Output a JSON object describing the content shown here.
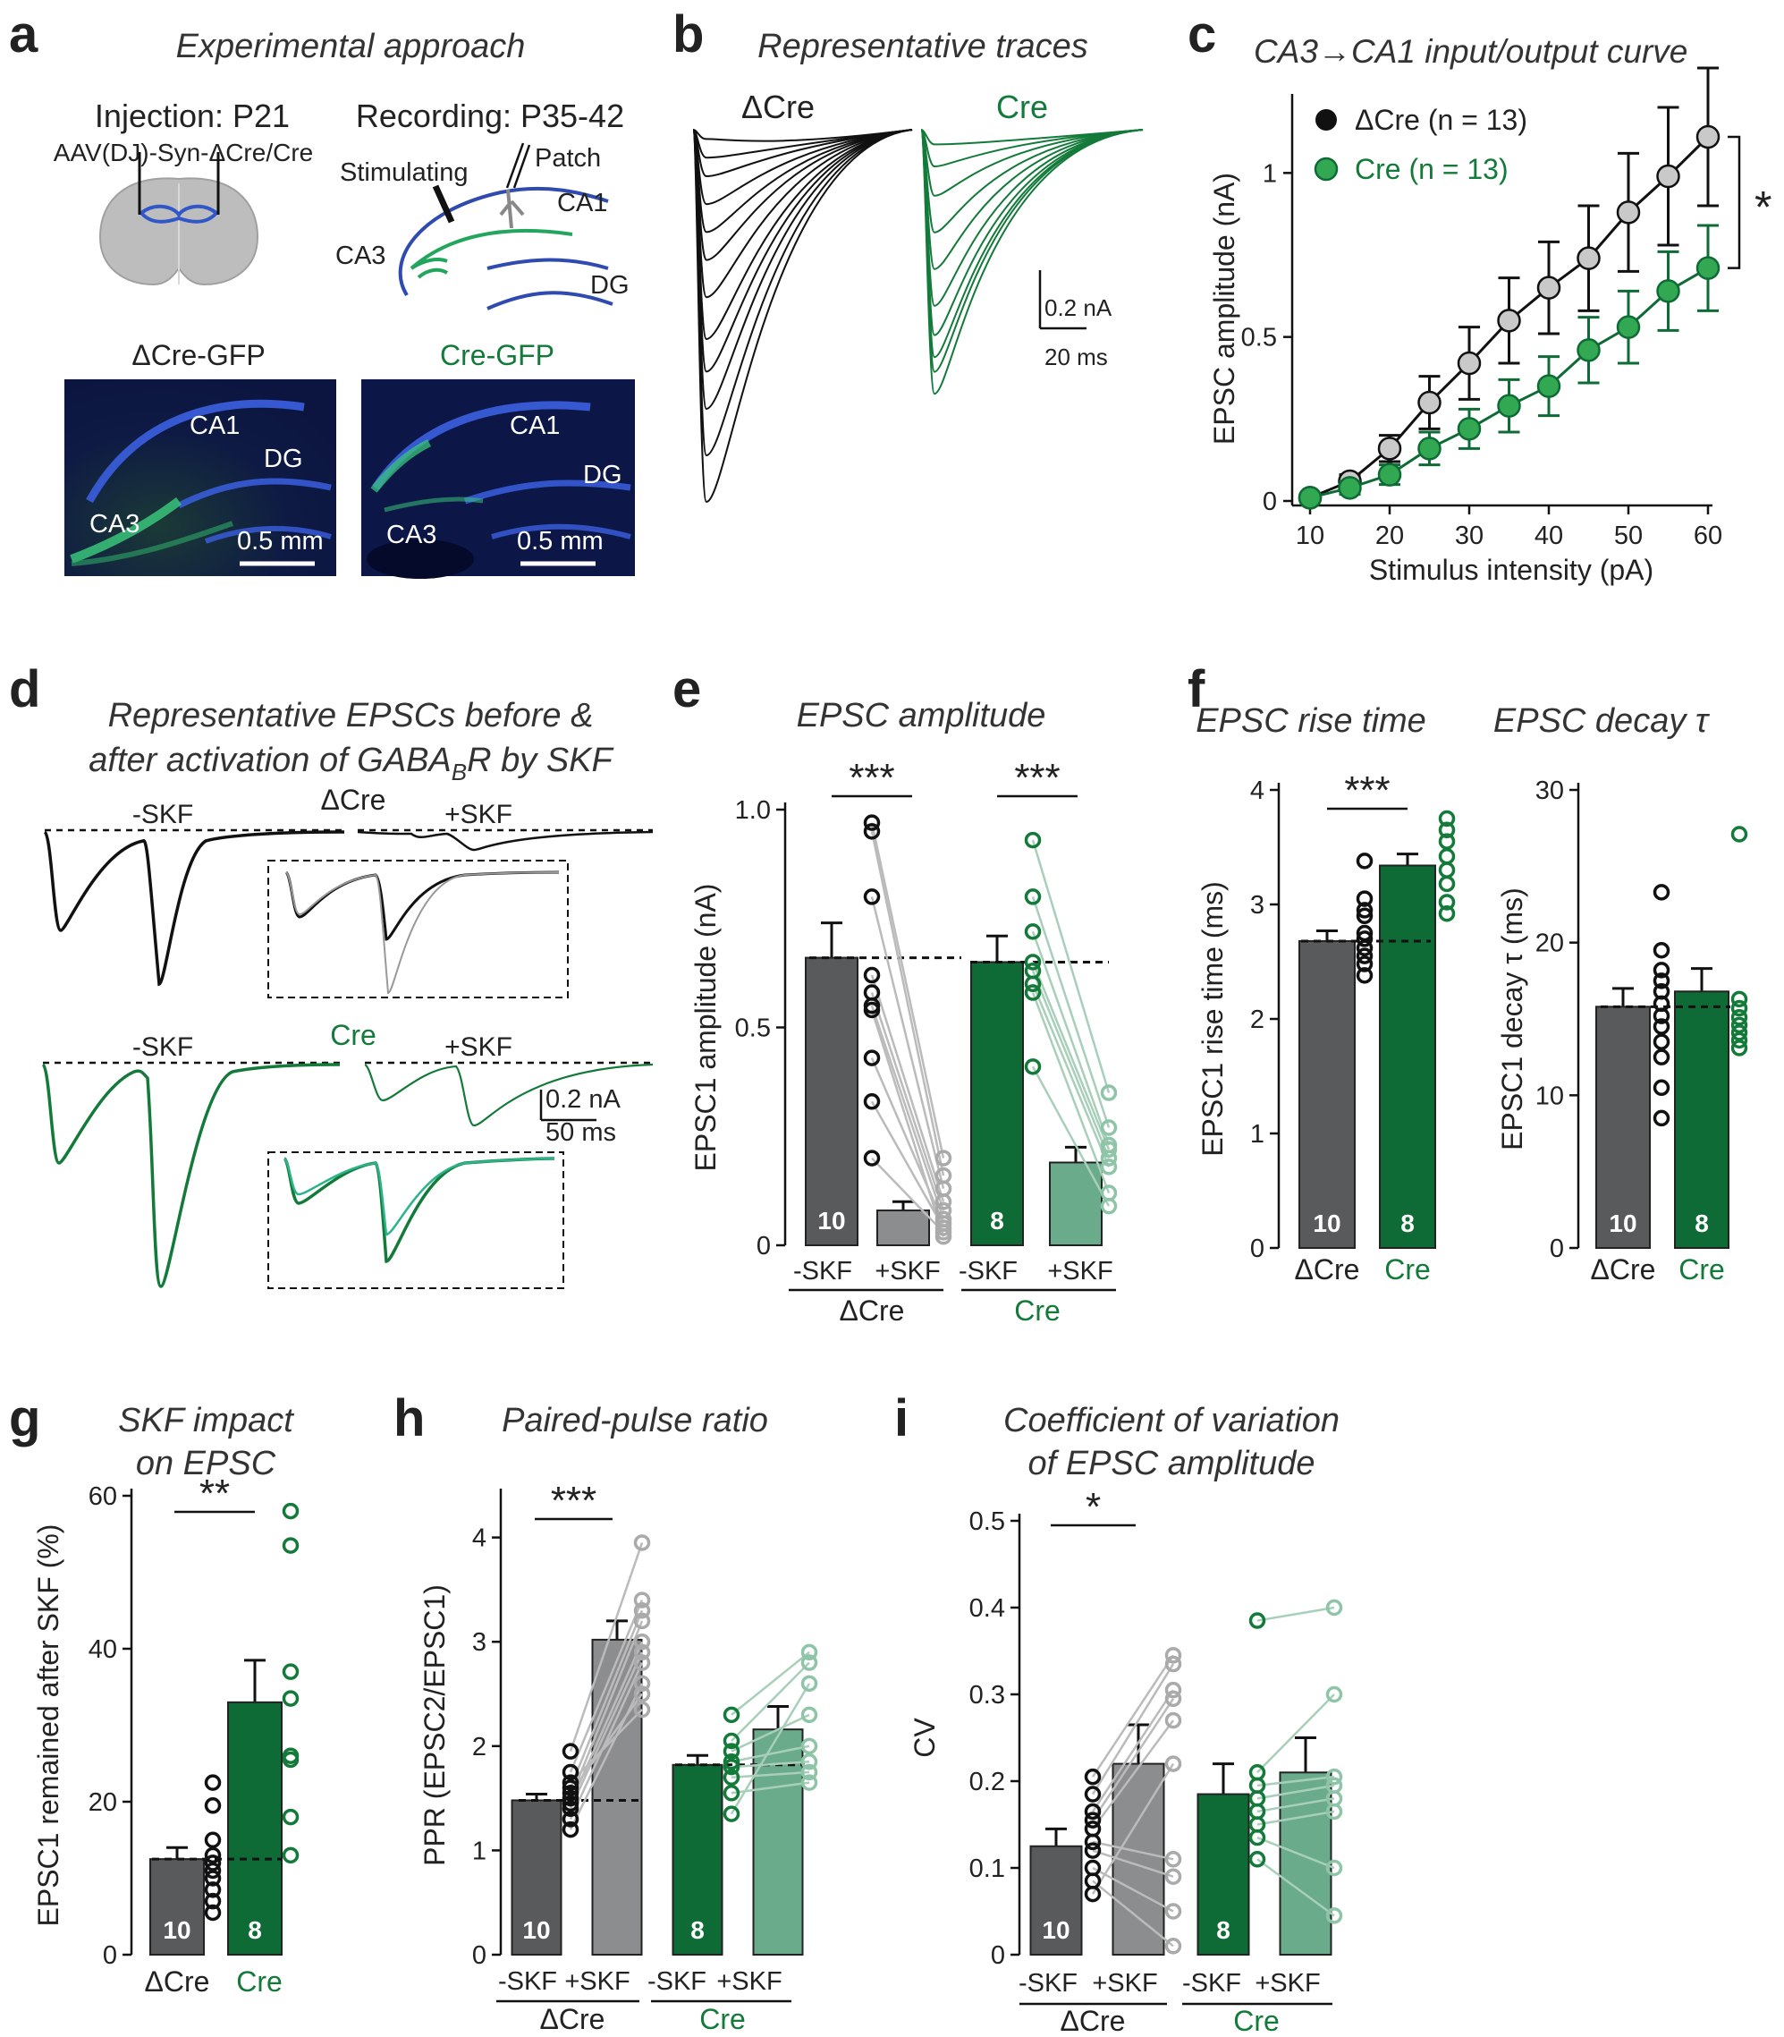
{
  "colors": {
    "dcre_bar": "#595a5c",
    "dcre_skf": "#8c8d8f",
    "cre_bar": "#0f6b35",
    "cre_skf": "#6aab8c",
    "cre_mid": "#33a852",
    "grey_marker": "#c9c9c9",
    "blue": "#2f4bb0",
    "dashed": "#111111"
  },
  "panels": {
    "a": {
      "letter": "a",
      "title": "Experimental approach",
      "injection": "Injection: P21",
      "recording": "Recording: P35-42",
      "virus": "AAV(DJ)-Syn-ΔCre/Cre",
      "stimulating": "Stimulating",
      "patch": "Patch",
      "ca1": "CA1",
      "ca3": "CA3",
      "dg": "DG",
      "img_left_title": "ΔCre-GFP",
      "img_right_title": "Cre-GFP",
      "scale": "0.5 mm"
    },
    "b": {
      "letter": "b",
      "title": "Representative traces",
      "left_label": "ΔCre",
      "right_label": "Cre",
      "scale_y": "0.2 nA",
      "scale_x": "20 ms"
    },
    "d": {
      "letter": "d",
      "title1": "Representative EPSCs before &",
      "title2_a": "after activation of GABA",
      "title2_sub": "B",
      "title2_b": "R by SKF",
      "minus": "-SKF",
      "plus": "+SKF",
      "dcre": "ΔCre",
      "cre": "Cre",
      "scale_y": "0.2 nA",
      "scale_x": "50 ms"
    },
    "f": {
      "letter": "f"
    },
    "g": {
      "letter": "g"
    },
    "h": {
      "letter": "h"
    },
    "i": {
      "letter": "i"
    }
  },
  "chart_data": [
    {
      "id": "c",
      "type": "line",
      "title": "CA3→CA1 input/output curve",
      "xlabel": "Stimulus intensity (pA)",
      "ylabel": "EPSC amplitude (nA)",
      "xlim": [
        10,
        60
      ],
      "ylim": [
        0,
        1.2
      ],
      "xticks": [
        10,
        20,
        30,
        40,
        50,
        60
      ],
      "yticks": [
        "0",
        "0.5",
        "1"
      ],
      "x": [
        10,
        15,
        20,
        25,
        30,
        35,
        40,
        45,
        50,
        55,
        60
      ],
      "series": [
        {
          "name": "ΔCre (n = 13)",
          "values": [
            0.01,
            0.06,
            0.16,
            0.3,
            0.42,
            0.55,
            0.65,
            0.74,
            0.88,
            0.99,
            1.11
          ],
          "err": [
            0.005,
            0.02,
            0.04,
            0.08,
            0.11,
            0.13,
            0.14,
            0.16,
            0.18,
            0.21,
            0.21
          ]
        },
        {
          "name": "Cre (n = 13)",
          "values": [
            0.01,
            0.04,
            0.08,
            0.16,
            0.22,
            0.29,
            0.35,
            0.46,
            0.53,
            0.64,
            0.71
          ],
          "err": [
            0.005,
            0.02,
            0.03,
            0.05,
            0.06,
            0.08,
            0.09,
            0.1,
            0.11,
            0.12,
            0.13
          ]
        }
      ],
      "significance": "*"
    },
    {
      "id": "e",
      "type": "bar",
      "title": "EPSC amplitude",
      "ylabel": "EPSC1 amplitude (nA)",
      "ylim": [
        0,
        1.0
      ],
      "yticks": [
        "0",
        "0.5",
        "1.0"
      ],
      "categories": [
        "-SKF",
        "+SKF",
        "-SKF",
        "+SKF"
      ],
      "groups": [
        "ΔCre",
        "Cre"
      ],
      "values": [
        0.66,
        0.08,
        0.65,
        0.19
      ],
      "err": [
        0.08,
        0.02,
        0.06,
        0.035
      ],
      "n": [
        "10",
        "",
        "8",
        ""
      ],
      "significance": [
        "***",
        "***"
      ]
    },
    {
      "id": "f1",
      "type": "bar",
      "title": "EPSC rise time",
      "ylabel": "EPSC1 rise time (ms)",
      "ylim": [
        0,
        4
      ],
      "yticks": [
        "0",
        "1",
        "2",
        "3",
        "4"
      ],
      "categories": [
        "ΔCre",
        "Cre"
      ],
      "values": [
        2.68,
        3.34
      ],
      "err": [
        0.09,
        0.1
      ],
      "n": [
        "10",
        "8"
      ],
      "significance": "***"
    },
    {
      "id": "f2",
      "type": "bar",
      "title": "EPSC decay τ",
      "ylabel": "EPSC1 decay τ (ms)",
      "ylim": [
        0,
        30
      ],
      "yticks": [
        "0",
        "10",
        "20",
        "30"
      ],
      "categories": [
        "ΔCre",
        "Cre"
      ],
      "values": [
        15.8,
        16.8
      ],
      "err": [
        1.2,
        1.5
      ],
      "n": [
        "10",
        "8"
      ]
    },
    {
      "id": "g",
      "type": "bar",
      "title1": "SKF impact",
      "title2": "on EPSC",
      "ylabel": "EPSC1 remained after SKF (%)",
      "ylim": [
        0,
        60
      ],
      "yticks": [
        "0",
        "20",
        "40",
        "60"
      ],
      "categories": [
        "ΔCre",
        "Cre"
      ],
      "values": [
        12.5,
        33
      ],
      "err": [
        1.5,
        5.5
      ],
      "n": [
        "10",
        "8"
      ],
      "significance": "**"
    },
    {
      "id": "h",
      "type": "bar",
      "title": "Paired-pulse ratio",
      "ylabel": "PPR (EPSC2/EPSC1)",
      "ylim": [
        0,
        4.4
      ],
      "yticks": [
        "0",
        "1",
        "2",
        "3",
        "4"
      ],
      "categories": [
        "-SKF",
        "+SKF",
        "-SKF",
        "+SKF"
      ],
      "groups": [
        "ΔCre",
        "Cre"
      ],
      "values": [
        1.48,
        3.02,
        1.82,
        2.16
      ],
      "err": [
        0.06,
        0.18,
        0.09,
        0.22
      ],
      "n": [
        "10",
        "",
        "8",
        ""
      ],
      "significance": "***"
    },
    {
      "id": "i",
      "type": "bar",
      "title1": "Coefficient of variation",
      "title2": "of EPSC amplitude",
      "ylabel": "CV",
      "ylim": [
        0,
        0.5
      ],
      "yticks": [
        "0",
        "0.1",
        "0.2",
        "0.3",
        "0.4",
        "0.5"
      ],
      "categories": [
        "-SKF",
        "+SKF",
        "-SKF",
        "+SKF"
      ],
      "groups": [
        "ΔCre",
        "Cre"
      ],
      "values": [
        0.125,
        0.22,
        0.185,
        0.21
      ],
      "err": [
        0.02,
        0.045,
        0.035,
        0.04
      ],
      "n": [
        "10",
        "",
        "8",
        ""
      ],
      "significance": "*"
    }
  ]
}
